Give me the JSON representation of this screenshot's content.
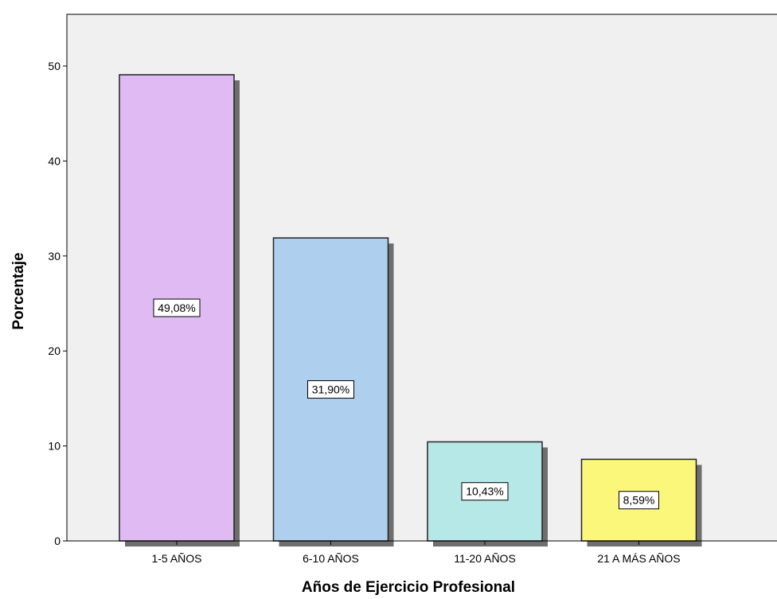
{
  "chart_data": {
    "type": "bar",
    "categories": [
      "1-5 AÑOS",
      "6-10 AÑOS",
      "11-20 AÑOS",
      "21 A MÁS AÑOS"
    ],
    "values": [
      49.08,
      31.9,
      10.43,
      8.59
    ],
    "data_labels": [
      "49,08%",
      "31,90%",
      "10,43%",
      "8,59%"
    ],
    "colors": [
      "#dfbaf3",
      "#aecfee",
      "#b5e8e6",
      "#fbf77a"
    ],
    "title": "",
    "xlabel": "Años de Ejercicio Profesional",
    "ylabel": "Porcentaje",
    "ylim": [
      0,
      55
    ],
    "yticks": [
      0,
      10,
      20,
      30,
      40,
      50
    ],
    "grid": false,
    "legend": "none",
    "plot_background": "#f0f0f0"
  }
}
